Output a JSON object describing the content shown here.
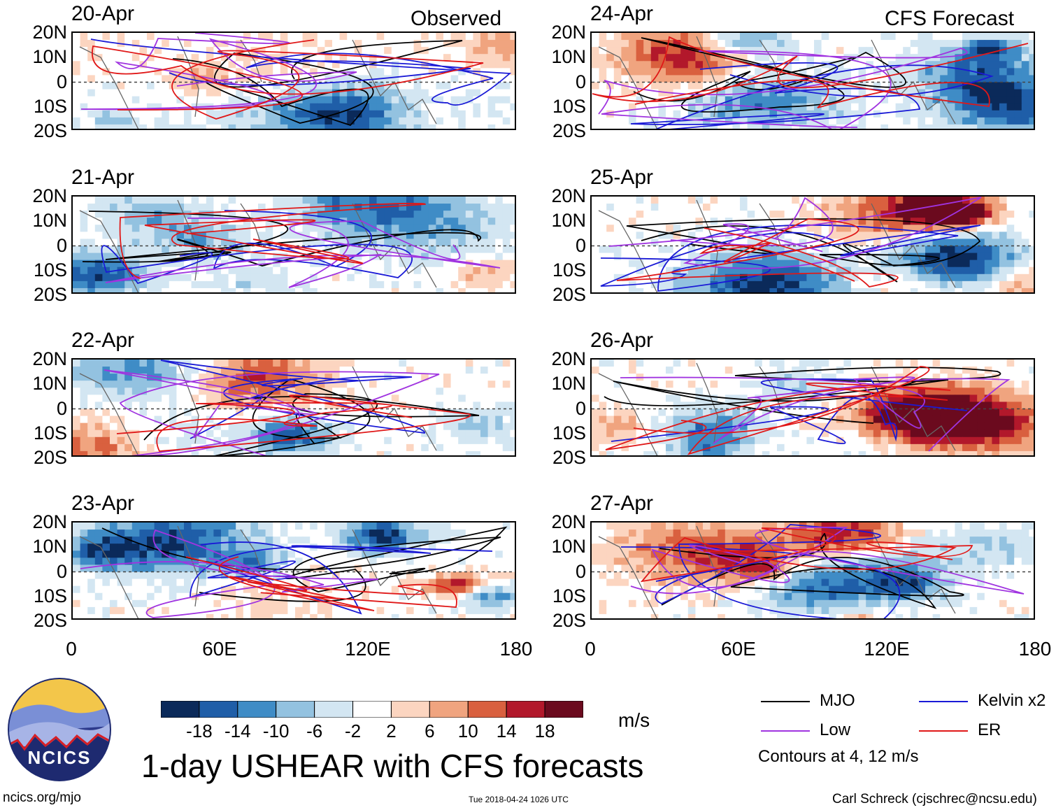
{
  "header": {
    "observed_label": "Observed",
    "forecast_label": "CFS Forecast"
  },
  "panels": [
    {
      "date": "20-Apr",
      "column": "left"
    },
    {
      "date": "21-Apr",
      "column": "left"
    },
    {
      "date": "22-Apr",
      "column": "left"
    },
    {
      "date": "23-Apr",
      "column": "left"
    },
    {
      "date": "24-Apr",
      "column": "right"
    },
    {
      "date": "25-Apr",
      "column": "right"
    },
    {
      "date": "26-Apr",
      "column": "right"
    },
    {
      "date": "27-Apr",
      "column": "right"
    }
  ],
  "chart_data": {
    "type": "heatmap",
    "title": "1-day USHEAR with CFS forecasts",
    "variable": "USHEAR",
    "units": "m/s",
    "lat_labels": [
      "20N",
      "10N",
      "0",
      "10S",
      "20S"
    ],
    "lon_labels": [
      "0",
      "60E",
      "120E",
      "180"
    ],
    "lat_range": [
      -20,
      20
    ],
    "lon_range": [
      0,
      180
    ],
    "colorbar_ticks": [
      "-18",
      "-14",
      "-10",
      "-6",
      "-2",
      "2",
      "6",
      "10",
      "14",
      "18"
    ],
    "colorbar_colors": [
      "#0b2a5a",
      "#1f5ea8",
      "#3f8cc6",
      "#93c2e0",
      "#d3e6f2",
      "#ffffff",
      "#fcd5c0",
      "#f0a47f",
      "#d9603f",
      "#b2182b",
      "#6b0a1e"
    ],
    "contour_note": "Contours at 4, 12 m/s",
    "legend": [
      {
        "name": "MJO",
        "color": "#000000"
      },
      {
        "name": "Kelvin x2",
        "color": "#1a1ad6"
      },
      {
        "name": "Low",
        "color": "#a034e0"
      },
      {
        "name": "ER",
        "color": "#e01818"
      }
    ]
  },
  "footer": {
    "logo_text": "NCICS",
    "url": "ncics.org/mjo",
    "timestamp": "Tue 2018-04-24 1026 UTC",
    "author": "Carl Schreck (cjschrec@ncsu.edu)"
  }
}
